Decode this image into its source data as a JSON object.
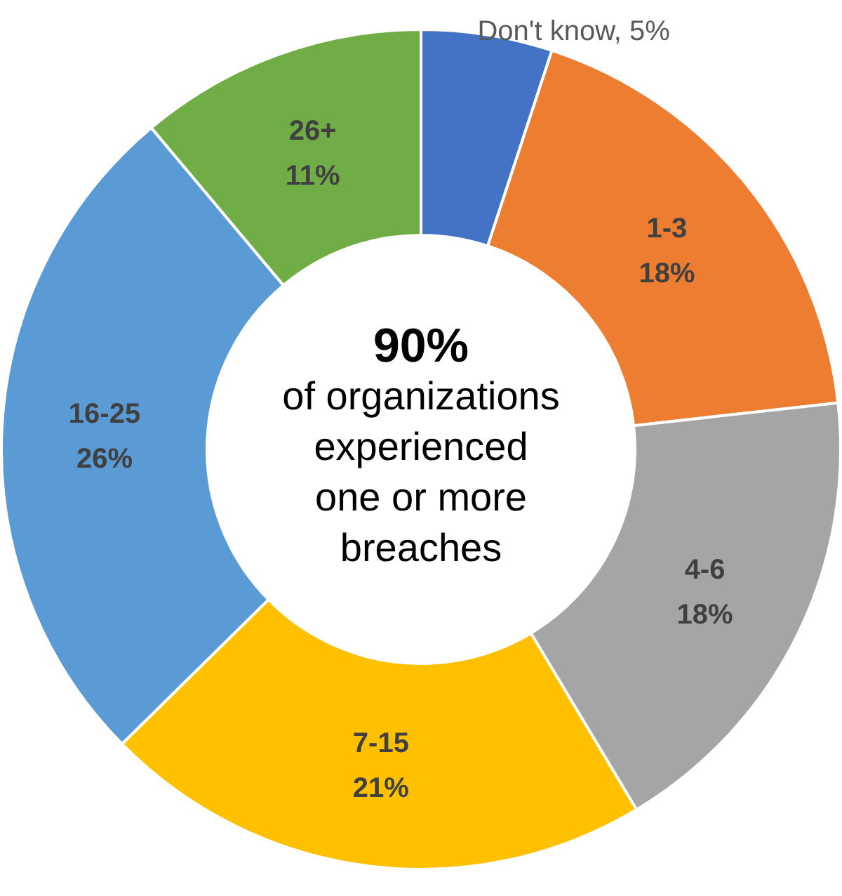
{
  "chart_data": {
    "type": "donut",
    "categories": [
      "Don't know",
      "1-3",
      "4-6",
      "7-15",
      "16-25",
      "26+"
    ],
    "values": [
      5,
      18,
      18,
      21,
      26,
      11
    ],
    "colors": [
      "#4472c4",
      "#ed7d31",
      "#a5a5a5",
      "#ffc000",
      "#5b9bd5",
      "#70ad47"
    ],
    "value_labels": [
      "5%",
      "18%",
      "18%",
      "21%",
      "26%",
      "11%"
    ],
    "annotations": [
      "90%",
      "of organizations experienced one or more breaches"
    ],
    "legend": false
  }
}
